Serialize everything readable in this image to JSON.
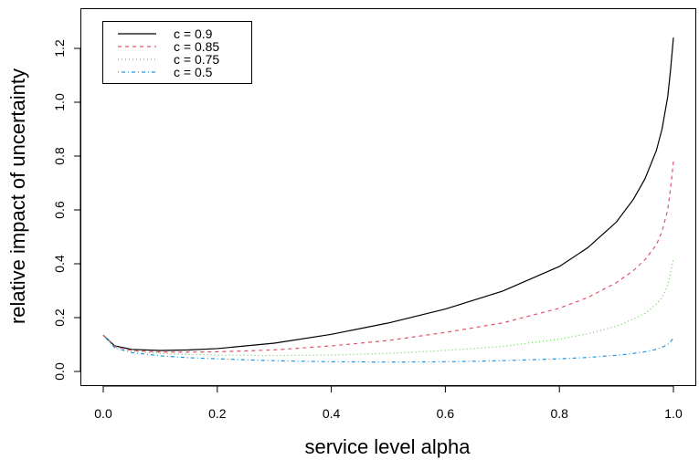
{
  "chart_data": {
    "type": "line",
    "title": "",
    "xlabel": "service level alpha",
    "ylabel": "relative impact of uncertainty",
    "xlim": [
      -0.04,
      1.04
    ],
    "ylim": [
      -0.05,
      1.35
    ],
    "x_ticks": [
      "0.0",
      "0.2",
      "0.4",
      "0.6",
      "0.8",
      "1.0"
    ],
    "y_ticks": [
      "0.0",
      "0.2",
      "0.4",
      "0.6",
      "0.8",
      "1.0",
      "1.2"
    ],
    "legend_position": "top-left",
    "series": [
      {
        "name": "c = 0.9",
        "color": "#000000",
        "dash": "solid",
        "x": [
          0.0,
          0.02,
          0.05,
          0.1,
          0.15,
          0.2,
          0.3,
          0.4,
          0.5,
          0.6,
          0.7,
          0.8,
          0.85,
          0.9,
          0.93,
          0.95,
          0.97,
          0.98,
          0.99,
          0.995,
          1.0
        ],
        "y": [
          0.135,
          0.095,
          0.082,
          0.078,
          0.08,
          0.085,
          0.105,
          0.138,
          0.18,
          0.232,
          0.298,
          0.39,
          0.46,
          0.555,
          0.64,
          0.715,
          0.82,
          0.9,
          1.02,
          1.12,
          1.24
        ]
      },
      {
        "name": "c = 0.85",
        "color": "#DF536B",
        "dash": "dashed",
        "x": [
          0.0,
          0.02,
          0.05,
          0.1,
          0.15,
          0.2,
          0.3,
          0.4,
          0.5,
          0.6,
          0.7,
          0.8,
          0.85,
          0.9,
          0.93,
          0.95,
          0.97,
          0.98,
          0.99,
          0.995,
          1.0
        ],
        "y": [
          0.135,
          0.093,
          0.078,
          0.072,
          0.072,
          0.073,
          0.08,
          0.095,
          0.115,
          0.145,
          0.18,
          0.235,
          0.275,
          0.33,
          0.375,
          0.415,
          0.47,
          0.52,
          0.6,
          0.68,
          0.78
        ]
      },
      {
        "name": "c = 0.75",
        "color": "#61D04F",
        "dash": "dotted",
        "x": [
          0.0,
          0.02,
          0.05,
          0.1,
          0.15,
          0.2,
          0.3,
          0.4,
          0.5,
          0.6,
          0.7,
          0.8,
          0.85,
          0.9,
          0.93,
          0.95,
          0.97,
          0.98,
          0.99,
          0.995,
          1.0
        ],
        "y": [
          0.135,
          0.09,
          0.075,
          0.067,
          0.063,
          0.061,
          0.059,
          0.061,
          0.067,
          0.078,
          0.093,
          0.12,
          0.14,
          0.168,
          0.195,
          0.215,
          0.25,
          0.275,
          0.32,
          0.365,
          0.42
        ]
      },
      {
        "name": "c = 0.5",
        "color": "#2297E6",
        "dash": "dotdash",
        "x": [
          0.0,
          0.02,
          0.05,
          0.1,
          0.15,
          0.2,
          0.3,
          0.4,
          0.5,
          0.6,
          0.7,
          0.8,
          0.85,
          0.9,
          0.93,
          0.95,
          0.97,
          0.98,
          0.99,
          0.995,
          1.0
        ],
        "y": [
          0.135,
          0.088,
          0.07,
          0.058,
          0.051,
          0.047,
          0.04,
          0.036,
          0.035,
          0.036,
          0.04,
          0.047,
          0.052,
          0.06,
          0.067,
          0.073,
          0.082,
          0.09,
          0.1,
          0.11,
          0.125
        ]
      }
    ]
  }
}
